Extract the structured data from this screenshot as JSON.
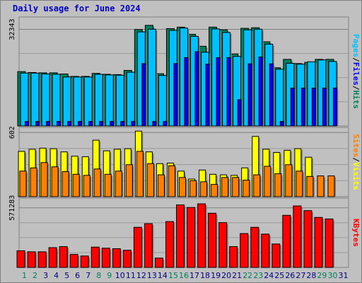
{
  "title": "Daily usage for June 2024",
  "colors": {
    "hits": "#00805c",
    "files": "#0000ff",
    "pages": "#00c0ff",
    "visits": "#ffff00",
    "sites": "#ff8000",
    "kbytes": "#ff0000",
    "weekend_tick": "#00805c",
    "weekday_tick": "#000080",
    "panel_bg": "#c0c0c0",
    "plot_border": "#808080",
    "gridline": "#808080"
  },
  "chart_data": [
    {
      "type": "bar",
      "name": "hits-files-pages",
      "categories": [
        "1",
        "2",
        "3",
        "4",
        "5",
        "6",
        "7",
        "8",
        "9",
        "10",
        "11",
        "12",
        "13",
        "14",
        "15",
        "16",
        "17",
        "18",
        "19",
        "20",
        "21",
        "22",
        "23",
        "24",
        "25",
        "26",
        "27",
        "28",
        "29",
        "30",
        "31"
      ],
      "y_tick_label": "32343",
      "ylim": [
        0,
        36500
      ],
      "right_label": [
        "Pages",
        "/",
        "Files",
        "/",
        "Hits"
      ],
      "right_label_colors": [
        "#00c0ff",
        "#000000",
        "#0000ff",
        "#000000",
        "#00805c"
      ],
      "series": [
        {
          "name": "Hits",
          "color": "#00805c",
          "values": [
            18200,
            17900,
            17800,
            17800,
            17400,
            16600,
            16600,
            17600,
            17300,
            17200,
            18600,
            32300,
            33700,
            17500,
            32600,
            33100,
            30700,
            26700,
            33100,
            32200,
            24100,
            32700,
            32900,
            28200,
            19500,
            22300,
            20900,
            21300,
            22300,
            22300,
            null
          ]
        },
        {
          "name": "Pages",
          "color": "#00c0ff",
          "values": [
            17700,
            17700,
            17400,
            17300,
            16400,
            16400,
            16400,
            17300,
            17100,
            17000,
            18000,
            31500,
            32400,
            16900,
            32000,
            32800,
            30000,
            24700,
            32500,
            31300,
            23300,
            32200,
            32400,
            27400,
            19000,
            21000,
            20700,
            21500,
            22100,
            21600,
            null
          ]
        },
        {
          "name": "Files",
          "color": "#0000ff",
          "values": [
            1500,
            1500,
            1500,
            1500,
            1500,
            1500,
            1500,
            1500,
            1500,
            1500,
            1500,
            20900,
            1500,
            1500,
            20900,
            22900,
            24900,
            20700,
            22900,
            22900,
            8800,
            20800,
            23100,
            20800,
            1500,
            12700,
            12700,
            12700,
            12700,
            12700,
            null
          ]
        }
      ]
    },
    {
      "type": "bar",
      "name": "visits-sites",
      "categories": [
        "1",
        "2",
        "3",
        "4",
        "5",
        "6",
        "7",
        "8",
        "9",
        "10",
        "11",
        "12",
        "13",
        "14",
        "15",
        "16",
        "17",
        "18",
        "19",
        "20",
        "21",
        "22",
        "23",
        "24",
        "25",
        "26",
        "27",
        "28",
        "29",
        "30",
        "31"
      ],
      "y_tick_label": "602",
      "ylim": [
        0,
        650
      ],
      "right_label": [
        "Sites",
        "/",
        "Visits"
      ],
      "right_label_colors": [
        "#ff8000",
        "#000000",
        "#ffff00"
      ],
      "series": [
        {
          "name": "Visits",
          "color": "#ffff00",
          "values": [
            425,
            445,
            455,
            450,
            420,
            380,
            375,
            530,
            430,
            445,
            450,
            615,
            420,
            310,
            315,
            240,
            165,
            250,
            210,
            205,
            200,
            270,
            565,
            445,
            415,
            435,
            450,
            370,
            null,
            null,
            null
          ]
        },
        {
          "name": "Sites",
          "color": "#ff8000",
          "values": [
            240,
            270,
            320,
            280,
            235,
            210,
            200,
            260,
            210,
            240,
            300,
            425,
            310,
            205,
            290,
            180,
            150,
            140,
            115,
            180,
            180,
            155,
            205,
            285,
            215,
            300,
            240,
            190,
            195,
            195,
            null
          ]
        }
      ]
    },
    {
      "type": "bar",
      "name": "kbytes",
      "categories": [
        "1",
        "2",
        "3",
        "4",
        "5",
        "6",
        "7",
        "8",
        "9",
        "10",
        "11",
        "12",
        "13",
        "14",
        "15",
        "16",
        "17",
        "18",
        "19",
        "20",
        "21",
        "22",
        "23",
        "24",
        "25",
        "26",
        "27",
        "28",
        "29",
        "30",
        "31"
      ],
      "y_tick_label": "571283",
      "ylim": [
        0,
        665000
      ],
      "right_label": [
        "KBytes"
      ],
      "right_label_colors": [
        "#ff0000"
      ],
      "series": [
        {
          "name": "KBytes",
          "color": "#ff0000",
          "values": [
            160000,
            150000,
            150000,
            190000,
            200000,
            125000,
            110000,
            195000,
            185000,
            180000,
            165000,
            385000,
            420000,
            90000,
            440000,
            600000,
            575000,
            610000,
            520000,
            430000,
            200000,
            325000,
            385000,
            320000,
            225000,
            500000,
            590000,
            545000,
            480000,
            465000,
            null
          ]
        }
      ]
    }
  ],
  "x_tick_labels": [
    "1",
    "2",
    "3",
    "4",
    "5",
    "6",
    "7",
    "8",
    "9",
    "10",
    "11",
    "12",
    "13",
    "14",
    "15",
    "16",
    "17",
    "18",
    "19",
    "20",
    "21",
    "22",
    "23",
    "24",
    "25",
    "26",
    "27",
    "28",
    "29",
    "30",
    "31"
  ],
  "weekend_days": [
    1,
    2,
    8,
    9,
    15,
    16,
    22,
    23,
    29,
    30
  ]
}
